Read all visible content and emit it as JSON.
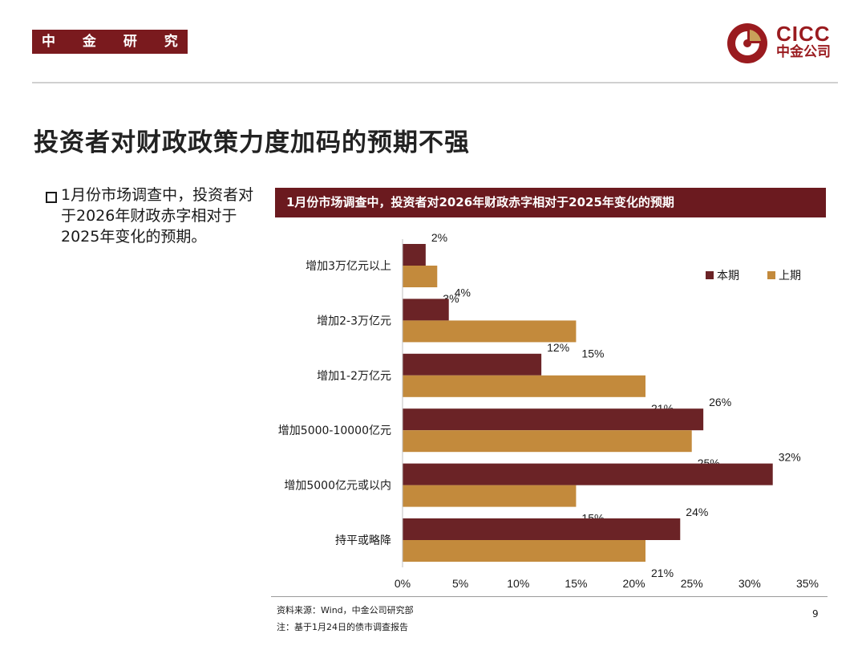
{
  "header": {
    "department": "中 金 研 究 部",
    "logo_en": "CICC",
    "logo_cn": "中金公司"
  },
  "title": "投资者对财政政策力度加码的预期不强",
  "bullet": "1月份市场调查中，投资者对于2026年财政赤字相对于2025年变化的预期。",
  "chart_title": "1月份市场调查中，投资者对2026年财政赤字相对于2025年变化的预期",
  "footer": {
    "source": "资料来源：Wind，中金公司研究部",
    "note": "注：基于1月24日的债市调查报告",
    "page": "9"
  },
  "colors": {
    "brand": "#7a1a1e",
    "current": "#6b2326",
    "previous": "#c38a3c"
  },
  "chart_data": {
    "type": "bar",
    "orientation": "horizontal",
    "title": "1月份市场调查中，投资者对2026年财政赤字相对于2025年变化的预期",
    "categories": [
      "增加3万亿元以上",
      "增加2-3万亿元",
      "增加1-2万亿元",
      "增加5000-10000亿元",
      "增加5000亿元或以内",
      "持平或略降"
    ],
    "series": [
      {
        "name": "本期",
        "values": [
          2,
          4,
          12,
          26,
          32,
          24
        ],
        "labels": [
          "2%",
          "4%",
          "12%",
          "26%",
          "32%",
          "24%"
        ]
      },
      {
        "name": "上期",
        "values": [
          3,
          15,
          21,
          25,
          15,
          21
        ],
        "labels": [
          "3%",
          "15%",
          "21%",
          "25%",
          "15%",
          "21%"
        ]
      }
    ],
    "xlim": [
      0,
      35
    ],
    "xticks": [
      0,
      5,
      10,
      15,
      20,
      25,
      30,
      35
    ],
    "xtick_labels": [
      "0%",
      "5%",
      "10%",
      "15%",
      "20%",
      "25%",
      "30%",
      "35%"
    ],
    "legend": [
      "本期",
      "上期"
    ],
    "legend_position": "top-right",
    "grid": false
  }
}
